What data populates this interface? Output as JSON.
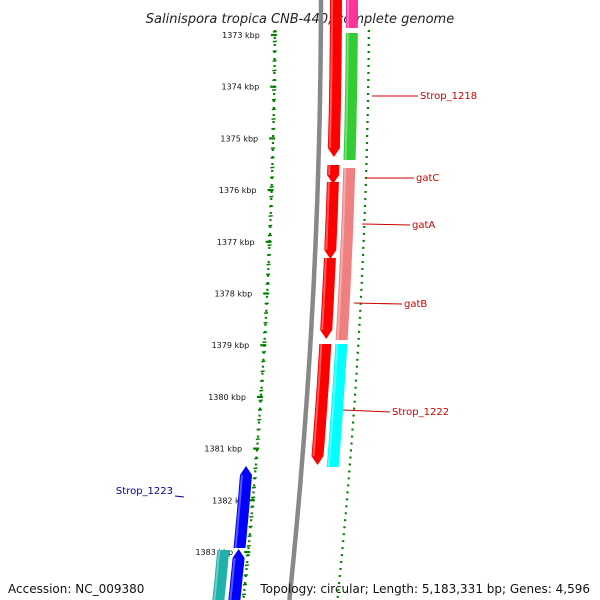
{
  "title": "Salinispora tropica CNB-440, complete genome",
  "ticks": [
    "1373 kbp",
    "1374 kbp",
    "1375 kbp",
    "1376 kbp",
    "1377 kbp",
    "1378 kbp",
    "1379 kbp",
    "1380 kbp",
    "1381 kbp",
    "1382 kbp",
    "1383 kbp"
  ],
  "genes": [
    {
      "name": "Strop_1218",
      "color": "#cc0000"
    },
    {
      "name": "gatC",
      "color": "#cc0000"
    },
    {
      "name": "gatA",
      "color": "#cc0000"
    },
    {
      "name": "gatB",
      "color": "#cc0000"
    },
    {
      "name": "Strop_1222",
      "color": "#cc0000"
    },
    {
      "name": "Strop_1223",
      "color": "#000099"
    }
  ],
  "colors": {
    "backbone": "#888888",
    "dotted_ring": "#008000",
    "cds_forward": "#ff0000",
    "cog_green": "#33cc33",
    "cog_pink": "#f08080",
    "cog_cyan": "#00ffff",
    "cds_reverse": "#0000ff",
    "cog_teal": "#20b2aa",
    "cog_magenta": "#ff3399"
  },
  "footer": {
    "accession": "Accession: NC_009380",
    "topology": "Topology: circular; Length: 5,183,331 bp; Genes: 4,596"
  }
}
